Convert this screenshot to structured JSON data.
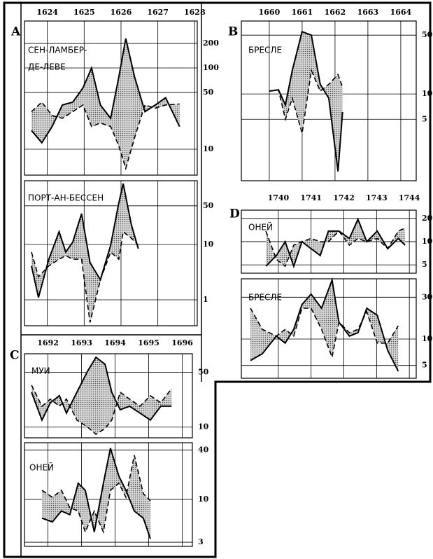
{
  "chart_data": [
    {
      "type": "line",
      "label": "A",
      "log_y": true,
      "grid": true,
      "fill_between": true,
      "xlim": [
        1623.38,
        1628.07
      ],
      "xticks": [
        1624,
        1625,
        1626,
        1627,
        1628
      ],
      "panels": [
        {
          "title": [
            "СЕН-ЛАМБЕР-",
            "ДЕ-ЛЕВЕ"
          ],
          "ylim": [
            4.8,
            378
          ],
          "yticks": [
            10,
            50,
            100,
            200
          ],
          "x": [
            1623.57,
            1623.85,
            1624.13,
            1624.41,
            1624.69,
            1624.97,
            1625.2,
            1625.44,
            1625.72,
            1625.94,
            1626.13,
            1626.37,
            1626.65,
            1626.93,
            1627.21,
            1627.59
          ],
          "series": [
            {
              "color": "#000",
              "style": "solid",
              "values": [
                17,
                12,
                19,
                35,
                38,
                57,
                100,
                35,
                24,
                77,
                230,
                77,
                29,
                35,
                43,
                19
              ]
            },
            {
              "color": "#000",
              "style": "dashed",
              "values": [
                29,
                38,
                26,
                24,
                29,
                35,
                19,
                21,
                19,
                11,
                5.8,
                14,
                35,
                32,
                35,
                36
              ]
            }
          ]
        },
        {
          "title": [
            "ПОРТ-АН-БЕССЕН"
          ],
          "ylim": [
            0.34,
            142
          ],
          "yticks": [
            1,
            10,
            50
          ],
          "x": [
            1623.57,
            1623.76,
            1624.04,
            1624.32,
            1624.5,
            1624.69,
            1624.93,
            1625.16,
            1625.44,
            1625.72,
            1625.94,
            1626.06,
            1626.28,
            1626.47
          ],
          "series": [
            {
              "color": "#000",
              "style": "solid",
              "values": [
                4.1,
                1.1,
                5.4,
                17,
                7.3,
                11,
                36,
                4.7,
                2.3,
                9.7,
                56,
                126,
                23,
                8.4
              ]
            },
            {
              "color": "#000",
              "style": "dashed",
              "values": [
                7.3,
                2.6,
                4.1,
                5.4,
                6.3,
                5.4,
                5.4,
                0.39,
                2.3,
                7.3,
                5.4,
                17,
                13,
                9.7
              ]
            }
          ]
        }
      ]
    },
    {
      "type": "line",
      "label": "B",
      "log_y": true,
      "grid": true,
      "fill_between": true,
      "xlim": [
        1659.15,
        1664.47
      ],
      "xticks": [
        1660,
        1661,
        1662,
        1663,
        1664
      ],
      "panels": [
        {
          "title": [
            "БРЕСЛЕ"
          ],
          "ylim": [
            0.93,
            73.6
          ],
          "yticks": [
            5,
            10,
            50
          ],
          "x": [
            1660,
            1660.28,
            1660.49,
            1660.7,
            1661,
            1661.28,
            1661.55,
            1661.81,
            1662.09,
            1662.23
          ],
          "series": [
            {
              "color": "#000",
              "style": "solid",
              "values": [
                10.8,
                11.2,
                7.4,
                19,
                55,
                50,
                13,
                8.9,
                1.2,
                6.1
              ]
            },
            {
              "color": "#000",
              "style": "dashed",
              "values": [
                10.8,
                11.2,
                5,
                8.9,
                3.4,
                19,
                10.8,
                13,
                17,
                12
              ]
            }
          ]
        }
      ]
    },
    {
      "type": "line",
      "label": "C",
      "log_y": true,
      "grid": true,
      "fill_between": true,
      "xlim": [
        1691.3,
        1696.3
      ],
      "xticks": [
        1692,
        1693,
        1694,
        1695,
        1696
      ],
      "panels": [
        {
          "title": [
            "МУИ"
          ],
          "ylim": [
            7.3,
            86.6
          ],
          "yticks": [
            10,
            50
          ],
          "x": [
            1691.51,
            1691.82,
            1692.07,
            1692.34,
            1692.55,
            1692.86,
            1693.18,
            1693.43,
            1693.7,
            1693.9,
            1694.15,
            1694.43,
            1694.74,
            1695.05,
            1695.36,
            1695.68
          ],
          "series": [
            {
              "color": "#000",
              "style": "solid",
              "values": [
                27.9,
                12.3,
                20.5,
                25.2,
                15.1,
                27.9,
                51.8,
                78,
                63.6,
                27.9,
                16.7,
                18.5,
                15.1,
                12.3,
                18.5,
                18.5
              ]
            },
            {
              "color": "#000",
              "style": "dashed",
              "values": [
                34.3,
                18.5,
                22.8,
                18.5,
                22.8,
                12.3,
                10,
                8.1,
                9.6,
                12.3,
                27.9,
                22.8,
                18.5,
                25.2,
                20.5,
                31
              ]
            }
          ]
        },
        {
          "title": [
            "ОНЕЙ"
          ],
          "ylim": [
            2.67,
            49
          ],
          "yticks": [
            3,
            10,
            40
          ],
          "x": [
            1691.82,
            1692.13,
            1692.4,
            1692.65,
            1692.9,
            1693.11,
            1693.38,
            1693.65,
            1693.86,
            1694.11,
            1694.32,
            1694.57,
            1694.84,
            1695.05
          ],
          "series": [
            {
              "color": "#000",
              "style": "solid",
              "values": [
                5.9,
                5.3,
                7.2,
                6.5,
                15.7,
                12.9,
                4,
                15.7,
                42,
                19.2,
                12.9,
                7.2,
                5.9,
                3.3
              ]
            },
            {
              "color": "#000",
              "style": "dashed",
              "values": [
                12.9,
                10.6,
                12.9,
                7.9,
                7.2,
                4,
                7.2,
                4,
                12.9,
                15.7,
                10.6,
                34.5,
                11.7,
                9.6
              ]
            }
          ]
        }
      ]
    },
    {
      "type": "line",
      "label": "D",
      "log_y": true,
      "grid": true,
      "fill_between": true,
      "xlim": [
        1738.87,
        1744.21
      ],
      "xticks": [
        1740,
        1741,
        1742,
        1743,
        1744
      ],
      "panels": [
        {
          "title": [
            "ОНЕЙ"
          ],
          "ylim": [
            3.9,
            25.6
          ],
          "yticks": [
            5,
            10,
            20
          ],
          "x": [
            1739.62,
            1739.94,
            1740.21,
            1740.47,
            1740.72,
            1741,
            1741.28,
            1741.53,
            1741.85,
            1742.17,
            1742.43,
            1742.7,
            1743.02,
            1743.34,
            1743.66,
            1743.87
          ],
          "series": [
            {
              "color": "#000",
              "style": "solid",
              "values": [
                4.8,
                6.6,
                10,
                4.8,
                10,
                8.1,
                6.6,
                13.7,
                13.7,
                11,
                19.5,
                10,
                13.7,
                8.1,
                11,
                9
              ]
            },
            {
              "color": "#000",
              "style": "dashed",
              "values": [
                13.7,
                5.9,
                4.8,
                9,
                10,
                11,
                10,
                10,
                13.7,
                9,
                11,
                10,
                11,
                8.1,
                13.7,
                15
              ]
            }
          ]
        },
        {
          "title": [
            "БРЕСЛЕ"
          ],
          "ylim": [
            3.57,
            48.7
          ],
          "yticks": [
            5,
            10,
            30
          ],
          "x": [
            1739.15,
            1739.51,
            1739.94,
            1740.21,
            1740.47,
            1740.72,
            1741,
            1741.32,
            1741.64,
            1741.85,
            1742.17,
            1742.43,
            1742.7,
            1743.02,
            1743.34,
            1743.66
          ],
          "series": [
            {
              "color": "#000",
              "style": "solid",
              "values": [
                5.7,
                6.8,
                10.8,
                9,
                12.9,
                24.7,
                32.5,
                22.5,
                47,
                15.6,
                10.8,
                11.8,
                22.5,
                18.7,
                7.4,
                4.3
              ]
            },
            {
              "color": "#000",
              "style": "dashed",
              "values": [
                22.5,
                12.9,
                10.8,
                12.9,
                10.8,
                22.5,
                22.5,
                12.9,
                6.2,
                15.6,
                11.8,
                12.9,
                20.5,
                9,
                9,
                14.2
              ]
            }
          ]
        }
      ]
    }
  ]
}
